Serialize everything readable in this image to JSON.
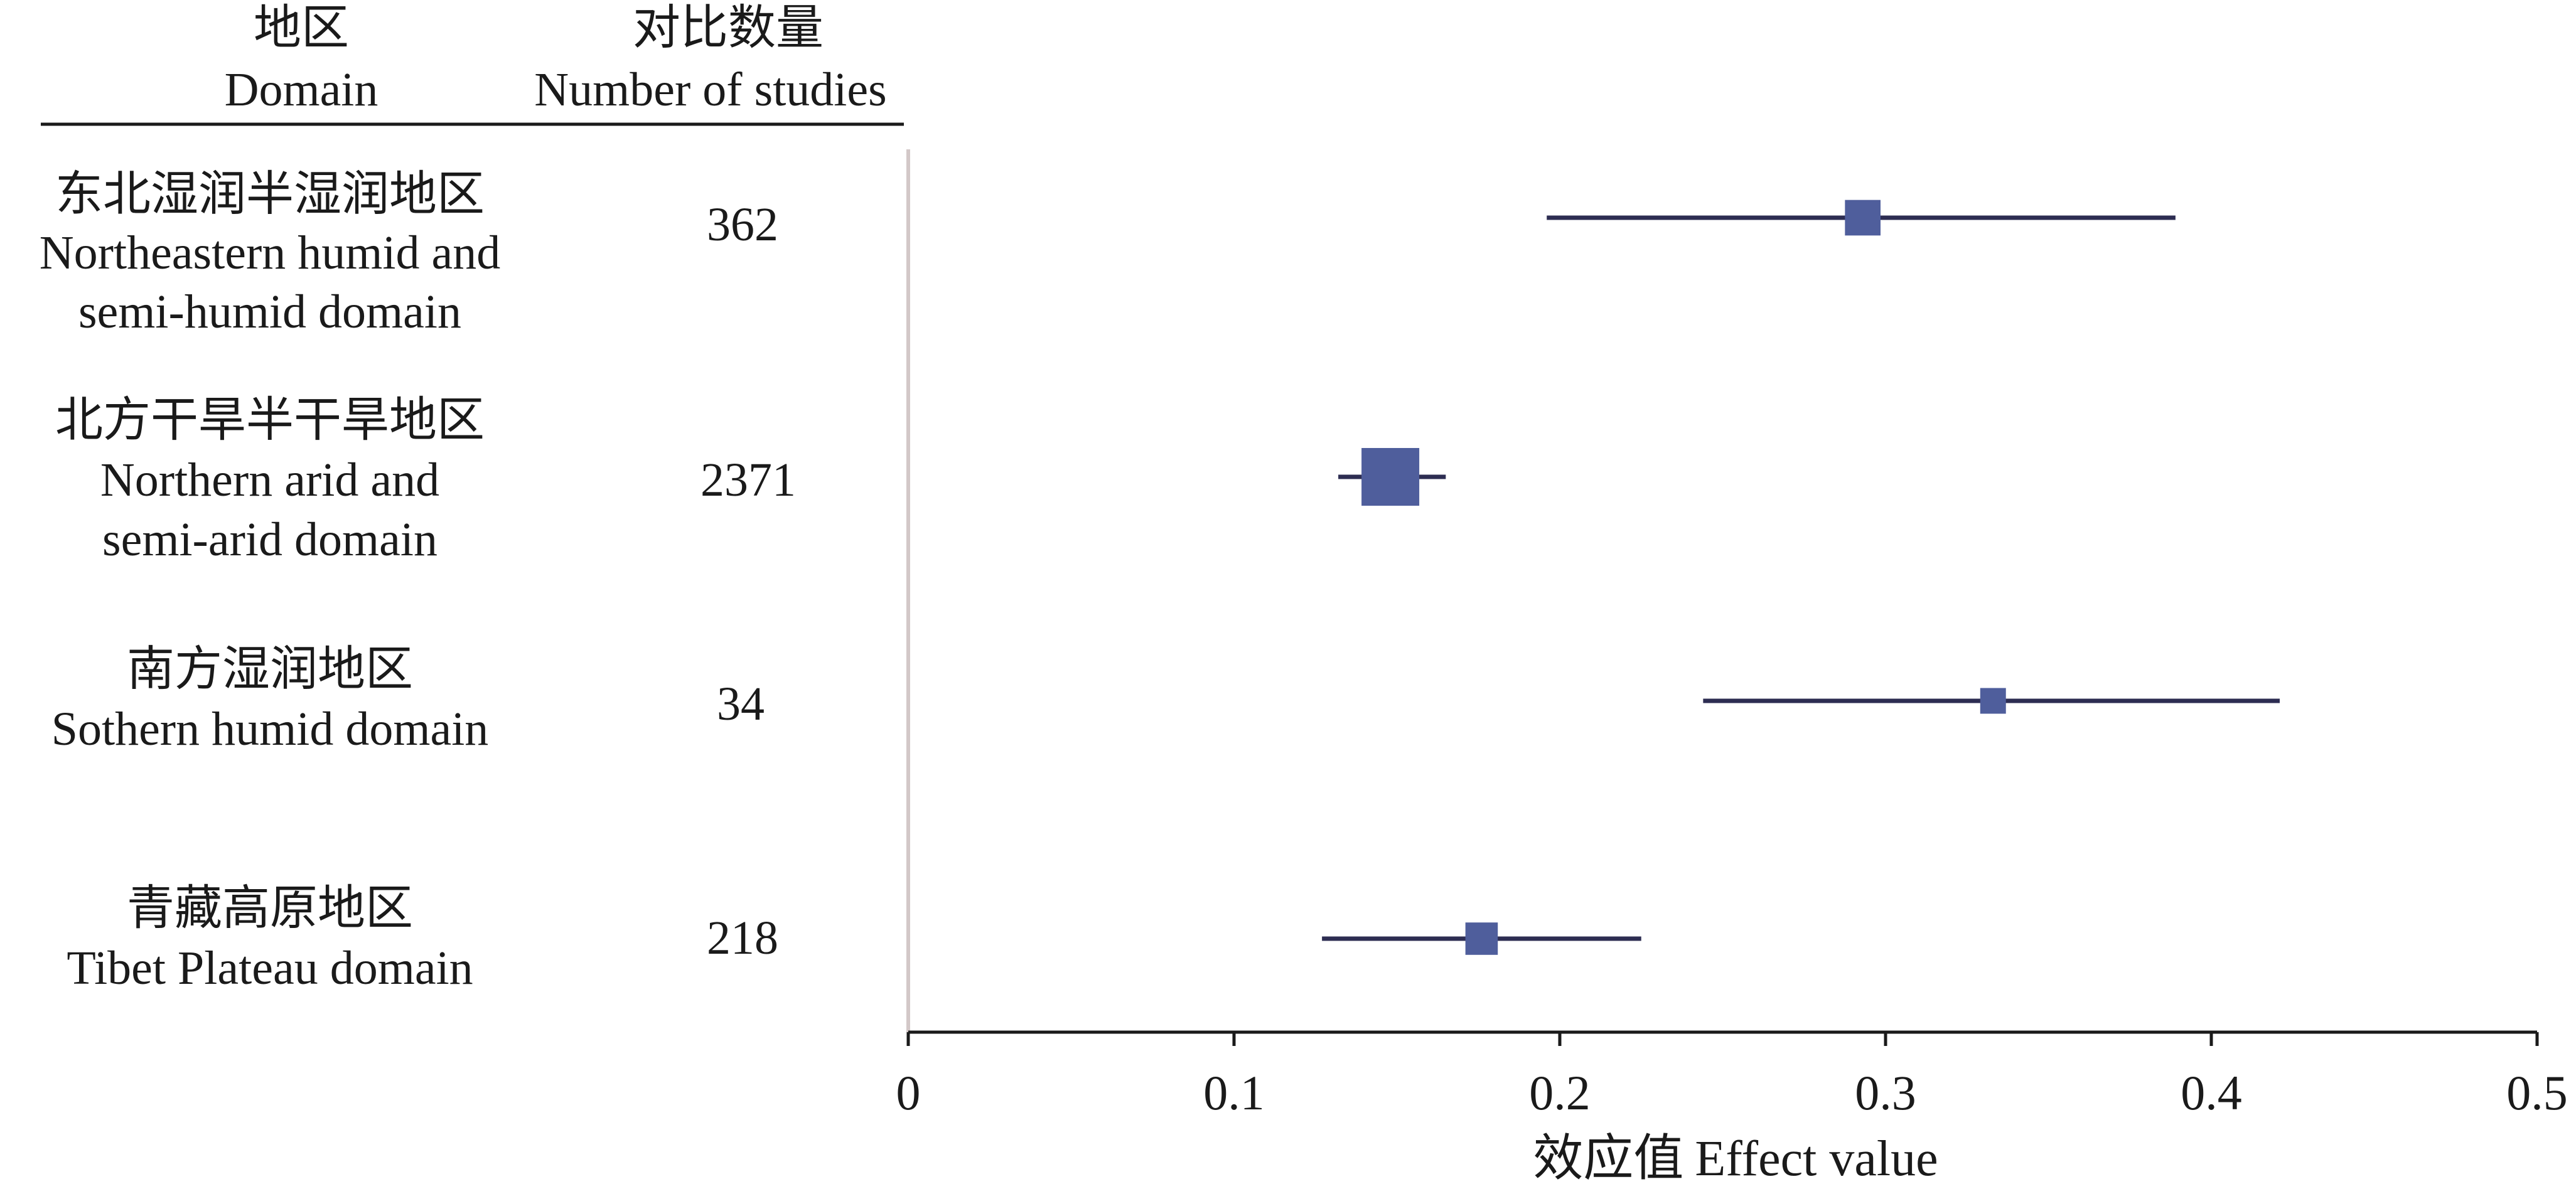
{
  "chart_data": {
    "type": "forest",
    "headers": {
      "domain_cn": "地区",
      "domain_en": "Domain",
      "count_cn": "对比数量",
      "count_en": "Number of studies"
    },
    "rows": [
      {
        "name_cn": "东北湿润半湿润地区",
        "name_en": [
          "Northeastern humid and",
          "semi-humid domain"
        ],
        "n": "362",
        "effect": 0.293,
        "ci": [
          0.196,
          0.389
        ],
        "weight": 362
      },
      {
        "name_cn": "北方干旱半干旱地区",
        "name_en": [
          "Northern arid and",
          "semi-arid domain"
        ],
        "n": "2371",
        "effect": 0.148,
        "ci": [
          0.132,
          0.165
        ],
        "weight": 2371
      },
      {
        "name_cn": "南方湿润地区",
        "name_en": [
          "Sothern humid domain"
        ],
        "n": "34",
        "effect": 0.333,
        "ci": [
          0.244,
          0.421
        ],
        "weight": 34
      },
      {
        "name_cn": "青藏高原地区",
        "name_en": [
          "Tibet Plateau domain"
        ],
        "n": "218",
        "effect": 0.176,
        "ci": [
          0.127,
          0.225
        ],
        "weight": 218
      }
    ],
    "x_ticks": [
      "0",
      "0.1",
      "0.2",
      "0.3",
      "0.4",
      "0.5"
    ],
    "xlim": [
      0,
      0.5
    ],
    "xlabel_cn": "效应值",
    "xlabel_en": "Effect value",
    "colors": {
      "marker": "#4f5e9c",
      "ci_line": "#2d2d52",
      "axis": "#1a1a1a",
      "ref_line": "#d3c8c8",
      "text": "#1a1a1a"
    }
  }
}
